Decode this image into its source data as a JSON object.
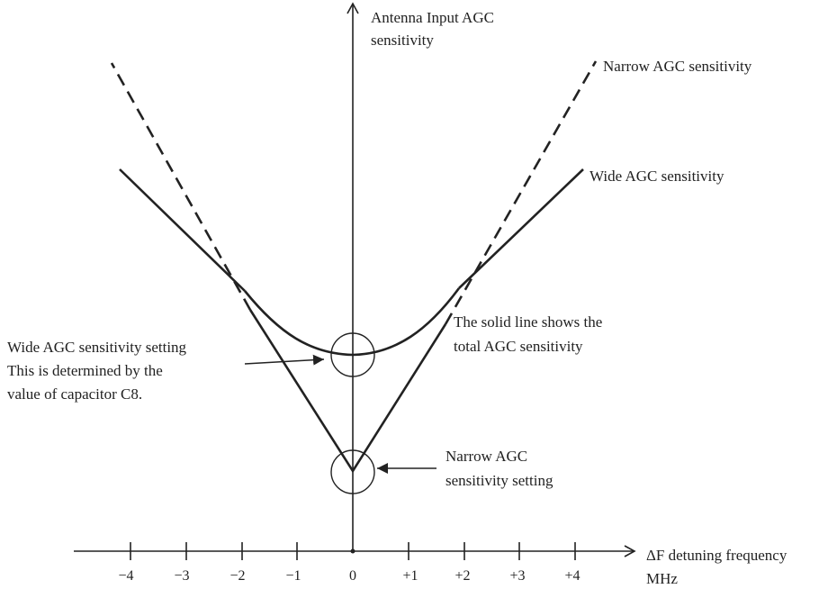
{
  "y_axis": {
    "label_line1": "Antenna Input AGC",
    "label_line2": "sensitivity"
  },
  "x_axis": {
    "label_line1": "ΔF detuning frequency",
    "label_line2": "MHz",
    "ticks": [
      "−4",
      "−3",
      "−2",
      "−1",
      "0",
      "+1",
      "+2",
      "+3",
      "+4"
    ]
  },
  "curves": {
    "narrow": "Narrow AGC sensitivity",
    "wide": "Wide AGC sensitivity"
  },
  "annotations": {
    "wide_setting": [
      "Wide AGC sensitivity setting",
      "This is determined by the",
      "value of capacitor C8."
    ],
    "total": [
      "The solid line shows the",
      "total AGC sensitivity"
    ],
    "narrow_setting": [
      "Narrow AGC",
      "sensitivity setting"
    ]
  },
  "colors": {
    "ink": "#222222",
    "background": "#ffffff"
  }
}
